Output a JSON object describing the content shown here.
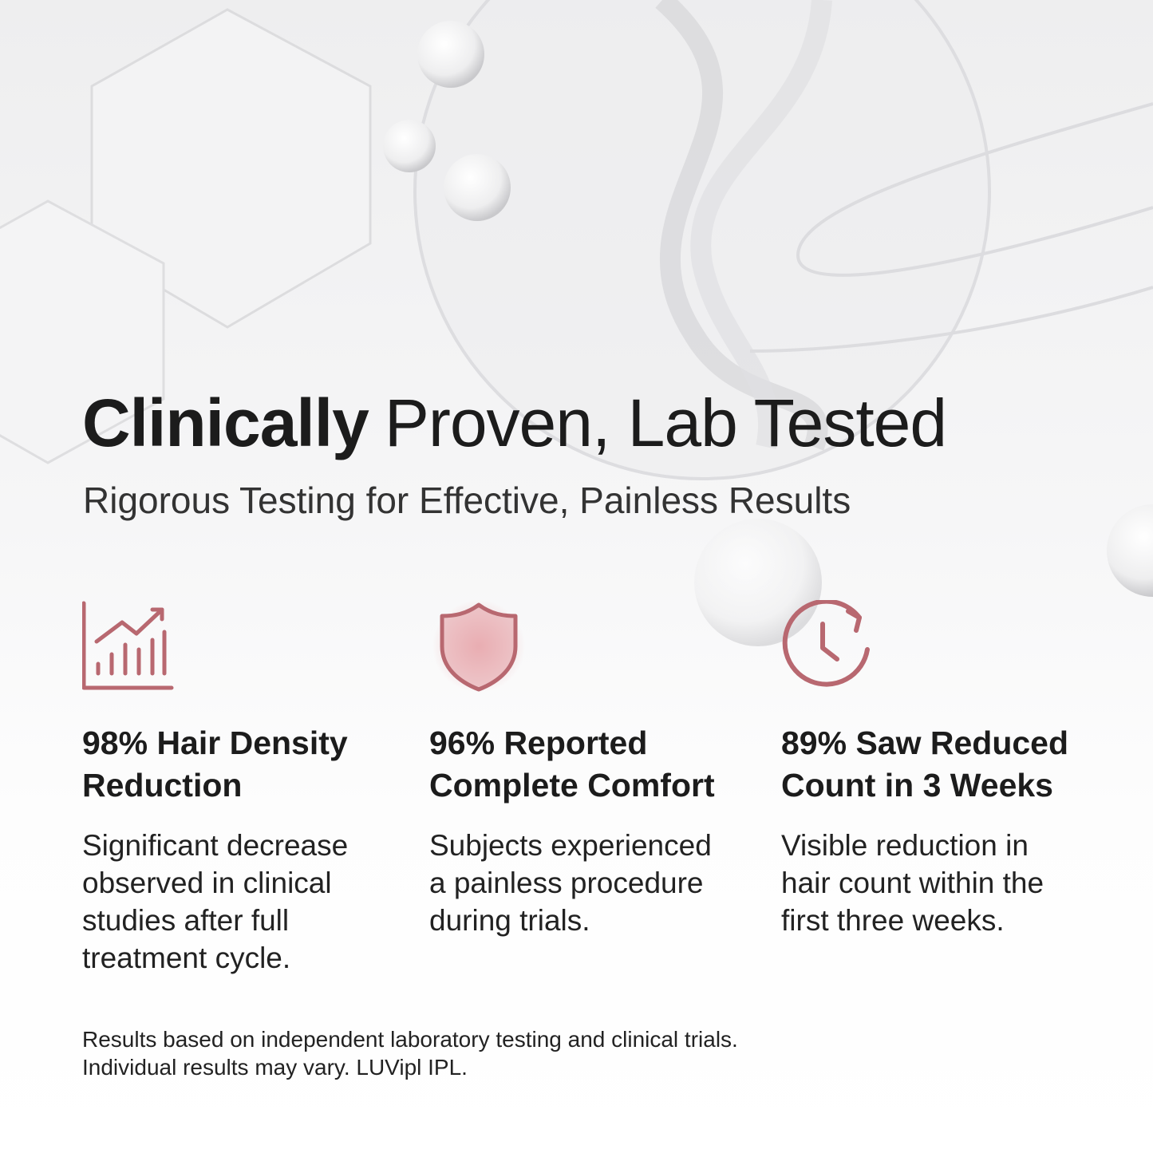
{
  "header": {
    "title_bold": "Clinically",
    "title_rest": "Proven, Lab Tested",
    "subtitle": "Rigorous Testing for Effective, Painless Results"
  },
  "features": [
    {
      "heading": [
        "98% Hair Density",
        "Reduction"
      ],
      "body": [
        "Significant decrease",
        "observed in clinical",
        "studies after full",
        "treatment cycle."
      ]
    },
    {
      "heading": [
        "96% Reported",
        "Complete Comfort"
      ],
      "body": [
        "Subjects experienced",
        "a painless procedure",
        "during trials."
      ]
    },
    {
      "heading": [
        "89% Saw Reduced",
        "Count in 3 Weeks"
      ],
      "body": [
        "Visible reduction in",
        "hair count within the",
        "first three weeks."
      ]
    }
  ],
  "footer": [
    "Results based on independent laboratory testing and clinical trials.",
    "Individual results may vary. LUVipl IPL."
  ]
}
